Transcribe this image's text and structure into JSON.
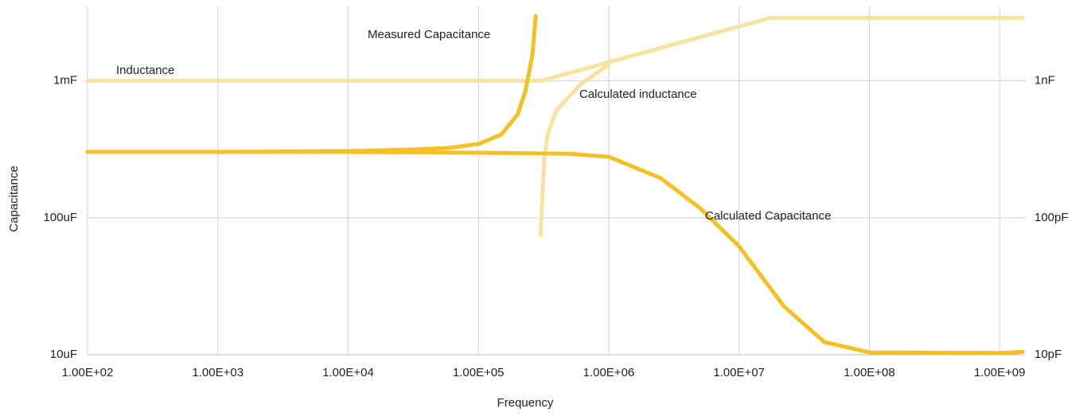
{
  "chart_data": {
    "type": "line",
    "x_label": "Frequency",
    "y_label": "Capacitance",
    "log_x": true,
    "log_y": true,
    "grid": true,
    "xlim": [
      100,
      1500000000
    ],
    "xticks": [
      {
        "value": 100,
        "label": "1.00E+02"
      },
      {
        "value": 1000,
        "label": "1.00E+03"
      },
      {
        "value": 10000,
        "label": "1.00E+04"
      },
      {
        "value": 100000,
        "label": "1.00E+05"
      },
      {
        "value": 1000000,
        "label": "1.00E+06"
      },
      {
        "value": 10000000,
        "label": "1.00E+07"
      },
      {
        "value": 100000000,
        "label": "1.00E+08"
      },
      {
        "value": 1000000000,
        "label": "1.00E+09"
      }
    ],
    "ylim": [
      1e-05,
      0.0035
    ],
    "yticks": [
      {
        "value": 1e-05,
        "label": "10uF"
      },
      {
        "value": 0.0001,
        "label": "100uF"
      },
      {
        "value": 0.001,
        "label": "1mF"
      }
    ],
    "y2lim": [
      1e-11,
      3.5e-09
    ],
    "y2ticks": [
      {
        "value": 1e-11,
        "label": "10pF"
      },
      {
        "value": 1e-10,
        "label": "100pF"
      },
      {
        "value": 1e-09,
        "label": "1nF"
      }
    ],
    "series": [
      {
        "name": "Inductance",
        "color": "#f7e3a0",
        "axis": "y2",
        "x": [
          100,
          300000,
          17500000,
          1500000000
        ],
        "values": [
          1e-09,
          1e-09,
          2.89e-09,
          2.89e-09
        ]
      },
      {
        "name": "Calculated  inductance",
        "color": "#f7e3a0",
        "axis": "y2",
        "x": [
          300000,
          320000,
          340000,
          396000,
          600000,
          1000000
        ],
        "values": [
          7.5e-11,
          2.72e-10,
          4.06e-10,
          6.08e-10,
          9.35e-10,
          1.32e-09
        ]
      },
      {
        "name": "Measured Capacitance",
        "color": "#f4c025",
        "x": [
          100,
          1000,
          10000,
          30000,
          60000,
          100000,
          150000,
          200000,
          230000,
          260000,
          275000
        ],
        "values": [
          0.000303,
          0.000303,
          0.000307,
          0.000315,
          0.000324,
          0.000346,
          0.000406,
          0.000569,
          0.000851,
          0.00156,
          0.00297
        ]
      },
      {
        "name": "Calculated  Capacitance",
        "color": "#f4c025",
        "x": [
          100,
          10000,
          100000,
          500000,
          1000000,
          2500000,
          5000000,
          10000000,
          22000000,
          45000000,
          100000000,
          1000000000,
          1500000000
        ],
        "values": [
          0.000303,
          0.000303,
          0.000299,
          0.000294,
          0.000279,
          0.000195,
          0.000118,
          6.2e-05,
          2.27e-05,
          1.24e-05,
          1.04e-05,
          1.03e-05,
          1.05e-05
        ]
      }
    ]
  }
}
